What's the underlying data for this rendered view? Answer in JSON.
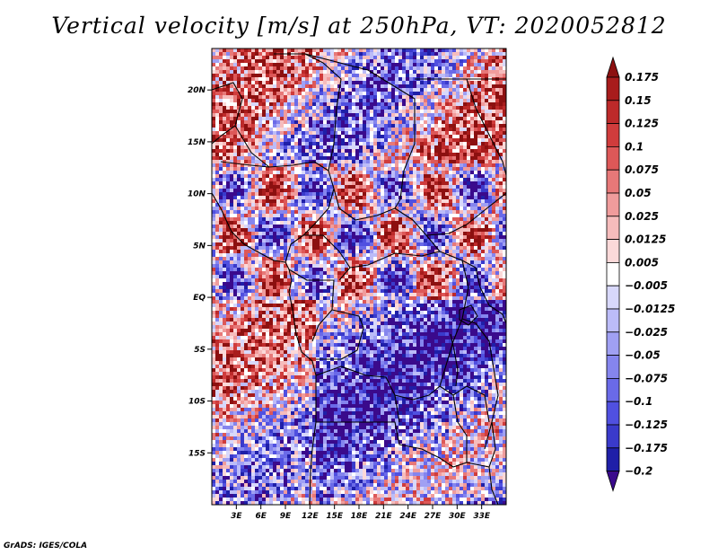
{
  "title": "Vertical velocity [m/s] at 250hPa, VT: 2020052812",
  "credit": "GrADS: IGES/COLA",
  "colors": {
    "levels_colors": [
      "#3a0a8c",
      "#1f1fa8",
      "#3a3acb",
      "#5050e0",
      "#6a6ae8",
      "#8585ee",
      "#a0a0f3",
      "#bcbcf8",
      "#d8d8fb",
      "#ffffff",
      "#fbd9d9",
      "#f6bcbc",
      "#f09c9c",
      "#e77878",
      "#dd5858",
      "#d03c3c",
      "#bd2a2a",
      "#a81c1c",
      "#8c1010"
    ]
  },
  "chart_data": {
    "type": "heatmap",
    "title": "Vertical velocity [m/s] at 250hPa, VT: 2020052812",
    "variable": "Vertical velocity",
    "units": "m/s",
    "level": "250hPa",
    "valid_time": "2020052812",
    "lon_range": [
      0,
      36
    ],
    "lat_range": [
      -20,
      24
    ],
    "x_ticks": [
      3,
      6,
      9,
      12,
      15,
      18,
      21,
      24,
      27,
      30,
      33
    ],
    "x_tick_labels": [
      "3E",
      "6E",
      "9E",
      "12E",
      "15E",
      "18E",
      "21E",
      "24E",
      "27E",
      "30E",
      "33E"
    ],
    "y_ticks": [
      20,
      15,
      10,
      5,
      0,
      -5,
      -10,
      -15
    ],
    "y_tick_labels": [
      "20N",
      "15N",
      "10N",
      "5N",
      "EQ",
      "5S",
      "10S",
      "15S"
    ],
    "colorbar_levels": [
      0.175,
      0.15,
      0.125,
      0.1,
      0.075,
      0.05,
      0.025,
      0.0125,
      0.005,
      -0.005,
      -0.0125,
      -0.025,
      -0.05,
      -0.075,
      -0.1,
      -0.125,
      -0.175,
      -0.2
    ],
    "colorbar_labels": [
      "0.175",
      "0.15",
      "0.125",
      "0.1",
      "0.075",
      "0.05",
      "0.025",
      "0.0125",
      "0.005",
      "−0.005",
      "−0.0125",
      "−0.025",
      "−0.05",
      "−0.075",
      "−0.1",
      "−0.125",
      "−0.175",
      "−0.2"
    ]
  }
}
